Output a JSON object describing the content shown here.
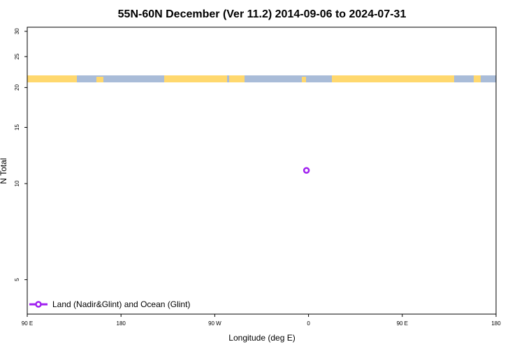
{
  "chart_data": {
    "type": "scatter",
    "title": "55N-60N December (Ver 11.2)   2014-09-06 to 2024-07-31",
    "x_label": "Longitude (deg E)",
    "y_label": "N Total",
    "xlim": [
      90,
      540
    ],
    "ylim": [
      3.9,
      30.9
    ],
    "y_log": true,
    "xticks": [
      {
        "value": 90,
        "label": "90 E"
      },
      {
        "value": 180,
        "label": "180"
      },
      {
        "value": 270,
        "label": "90 W"
      },
      {
        "value": 360,
        "label": "0"
      },
      {
        "value": 450,
        "label": "90 E"
      },
      {
        "value": 540,
        "label": "180"
      }
    ],
    "yticks": [
      5,
      10,
      15,
      20,
      25,
      30
    ],
    "legend": "bottom-left",
    "series": [
      {
        "name": "Land (Nadir&Glint) and Ocean (Glint)",
        "color": "#a020f0",
        "x": [
          358
        ],
        "values": [
          11
        ]
      }
    ]
  }
}
